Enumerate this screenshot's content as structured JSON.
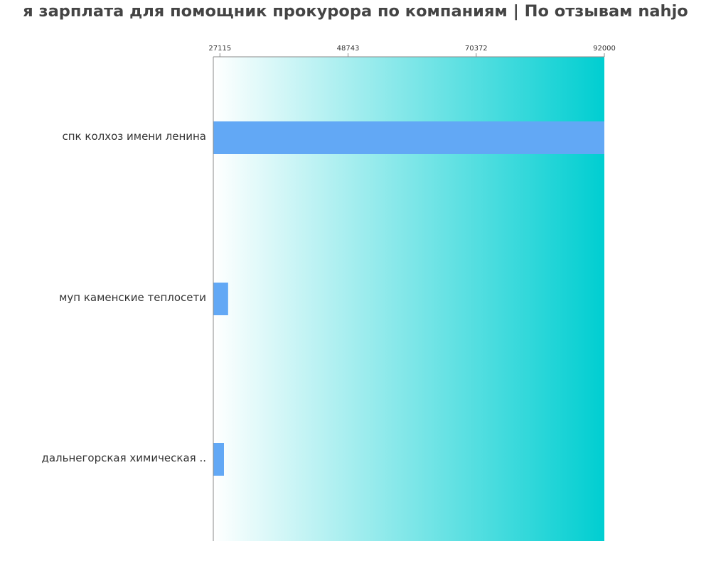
{
  "chart_data": {
    "type": "bar",
    "orientation": "horizontal",
    "title": "Средняя зарплата для помощник прокурора по компаниям  | По отзывам nahjob",
    "title_visible": "я зарплата для помощник прокурора по компаниям  | По отзывам nahjo",
    "categories": [
      "спк колхоз имени ленина",
      "муп каменские теплосети",
      "дальнегорская химическая .."
    ],
    "values": [
      92000,
      28500,
      27800
    ],
    "xlim": [
      26000,
      92000
    ],
    "x_ticks": [
      27115,
      48743,
      70372,
      92000
    ],
    "x_tick_labels": [
      "27115",
      "48743",
      "70372",
      "92000"
    ],
    "x_axis_position": "top",
    "grid": false,
    "legend": "none",
    "colors": {
      "bar": "#62a8f5",
      "background_gradient_start": "#ffffff",
      "background_gradient_end": "#00ced1",
      "axis": "#888888",
      "text": "#333333",
      "title": "#444444"
    }
  }
}
